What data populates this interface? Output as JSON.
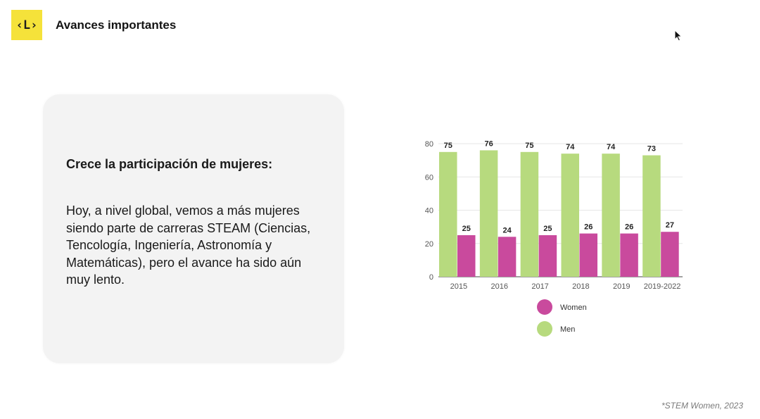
{
  "header": {
    "logo_text": "‹L›",
    "title": "Avances importantes"
  },
  "card": {
    "heading": "Crece la participación de mujeres:",
    "body": "Hoy, a nivel global, vemos a más mujeres siendo parte de carreras STEAM (Ciencias, Tencología, Ingeniería, Astronomía y Matemáticas), pero el avance ha sido aún muy lento."
  },
  "colors": {
    "logo_bg": "#f5e23a",
    "women": "#c94a9d",
    "men": "#b7da7e",
    "card_bg": "#f3f3f3"
  },
  "chart_data": {
    "type": "bar",
    "categories": [
      "2015",
      "2016",
      "2017",
      "2018",
      "2019",
      "2019-2022"
    ],
    "series": [
      {
        "name": "Men",
        "color": "#b7da7e",
        "values": [
          75,
          76,
          75,
          74,
          74,
          73
        ]
      },
      {
        "name": "Women",
        "color": "#c94a9d",
        "values": [
          25,
          24,
          25,
          26,
          26,
          27
        ]
      }
    ],
    "y_ticks": [
      0,
      20,
      40,
      60,
      80
    ],
    "ylim": [
      0,
      80
    ],
    "grid": true,
    "legend_placement": "bottom",
    "legend_order": [
      "Women",
      "Men"
    ]
  },
  "source": "*STEM Women, 2023"
}
